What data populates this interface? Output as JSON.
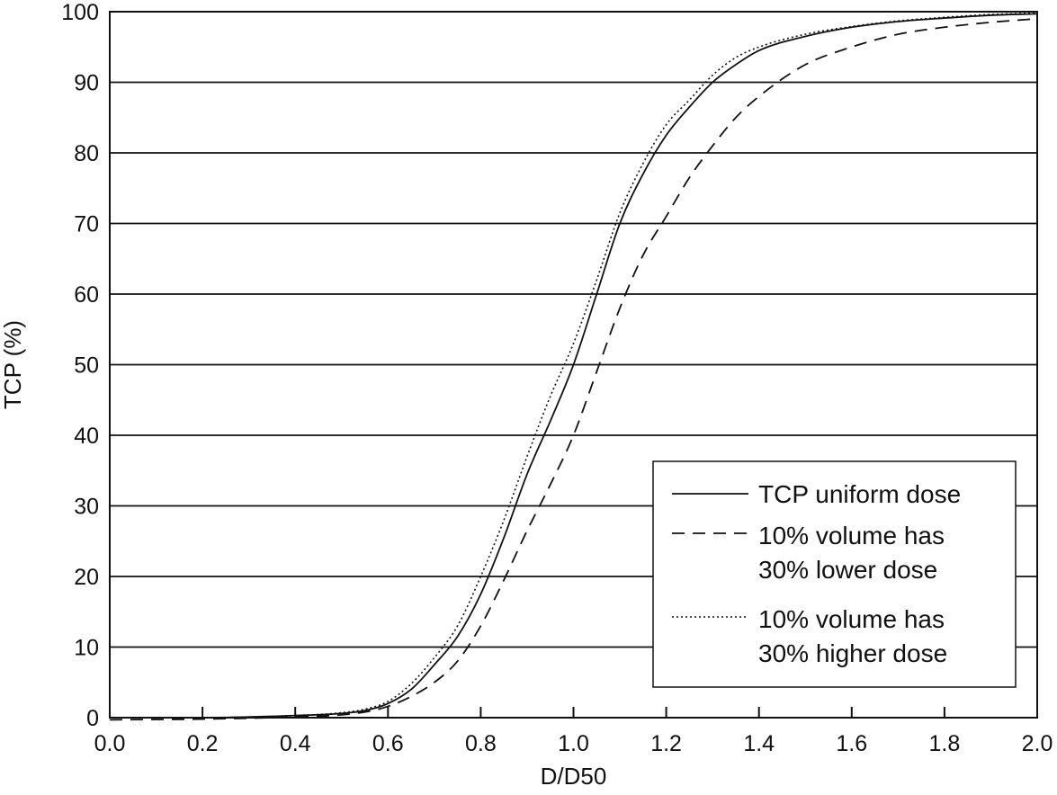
{
  "chart_data": {
    "type": "line",
    "title": "",
    "xlabel": "D/D50",
    "ylabel": "TCP (%)",
    "xlim": [
      0.0,
      2.0
    ],
    "ylim": [
      0,
      100
    ],
    "xticks": [
      "0.0",
      "0.2",
      "0.4",
      "0.6",
      "0.8",
      "1.0",
      "1.2",
      "1.4",
      "1.6",
      "1.8",
      "2.0"
    ],
    "yticks": [
      "0",
      "10",
      "20",
      "30",
      "40",
      "50",
      "60",
      "70",
      "80",
      "90",
      "100"
    ],
    "grid": "horizontal",
    "legend_position": "lower-right",
    "x": [
      0.0,
      0.2,
      0.4,
      0.5,
      0.55,
      0.6,
      0.65,
      0.7,
      0.75,
      0.8,
      0.85,
      0.9,
      0.95,
      1.0,
      1.05,
      1.1,
      1.15,
      1.2,
      1.25,
      1.3,
      1.35,
      1.4,
      1.5,
      1.6,
      1.7,
      1.8,
      1.9,
      2.0
    ],
    "series": [
      {
        "name": "TCP uniform dose",
        "style": "solid",
        "values": [
          0,
          0,
          0.3,
          0.6,
          1.0,
          2.0,
          4.0,
          7.5,
          11.5,
          17.5,
          25.5,
          34.5,
          42.0,
          50.0,
          60.0,
          70.0,
          77.0,
          82.5,
          86.5,
          90.0,
          92.5,
          94.5,
          96.5,
          97.8,
          98.6,
          99.1,
          99.5,
          99.7
        ]
      },
      {
        "name": "10% volume has 30% lower dose",
        "style": "dashed",
        "values": [
          -0.3,
          -0.2,
          0.1,
          0.4,
          0.8,
          1.6,
          3.0,
          5.0,
          8.0,
          13.0,
          19.5,
          26.5,
          33.0,
          40.0,
          49.0,
          58.0,
          65.5,
          71.0,
          76.5,
          81.0,
          85.0,
          88.0,
          92.5,
          95.0,
          96.8,
          97.8,
          98.5,
          99.0
        ]
      },
      {
        "name": "10% volume has 30% higher dose",
        "style": "dotted",
        "values": [
          0,
          0,
          0.3,
          0.7,
          1.2,
          2.3,
          4.8,
          8.5,
          13.0,
          20.0,
          28.0,
          37.0,
          45.5,
          53.0,
          62.0,
          71.5,
          78.5,
          84.0,
          87.5,
          91.0,
          93.5,
          95.0,
          96.8,
          97.9,
          98.7,
          99.2,
          99.6,
          99.8
        ]
      }
    ]
  },
  "legend": {
    "entries": [
      {
        "lines": [
          "TCP uniform dose"
        ]
      },
      {
        "lines": [
          "10% volume has",
          "30% lower dose"
        ]
      },
      {
        "lines": [
          "10% volume has",
          "30% higher dose"
        ]
      }
    ]
  }
}
